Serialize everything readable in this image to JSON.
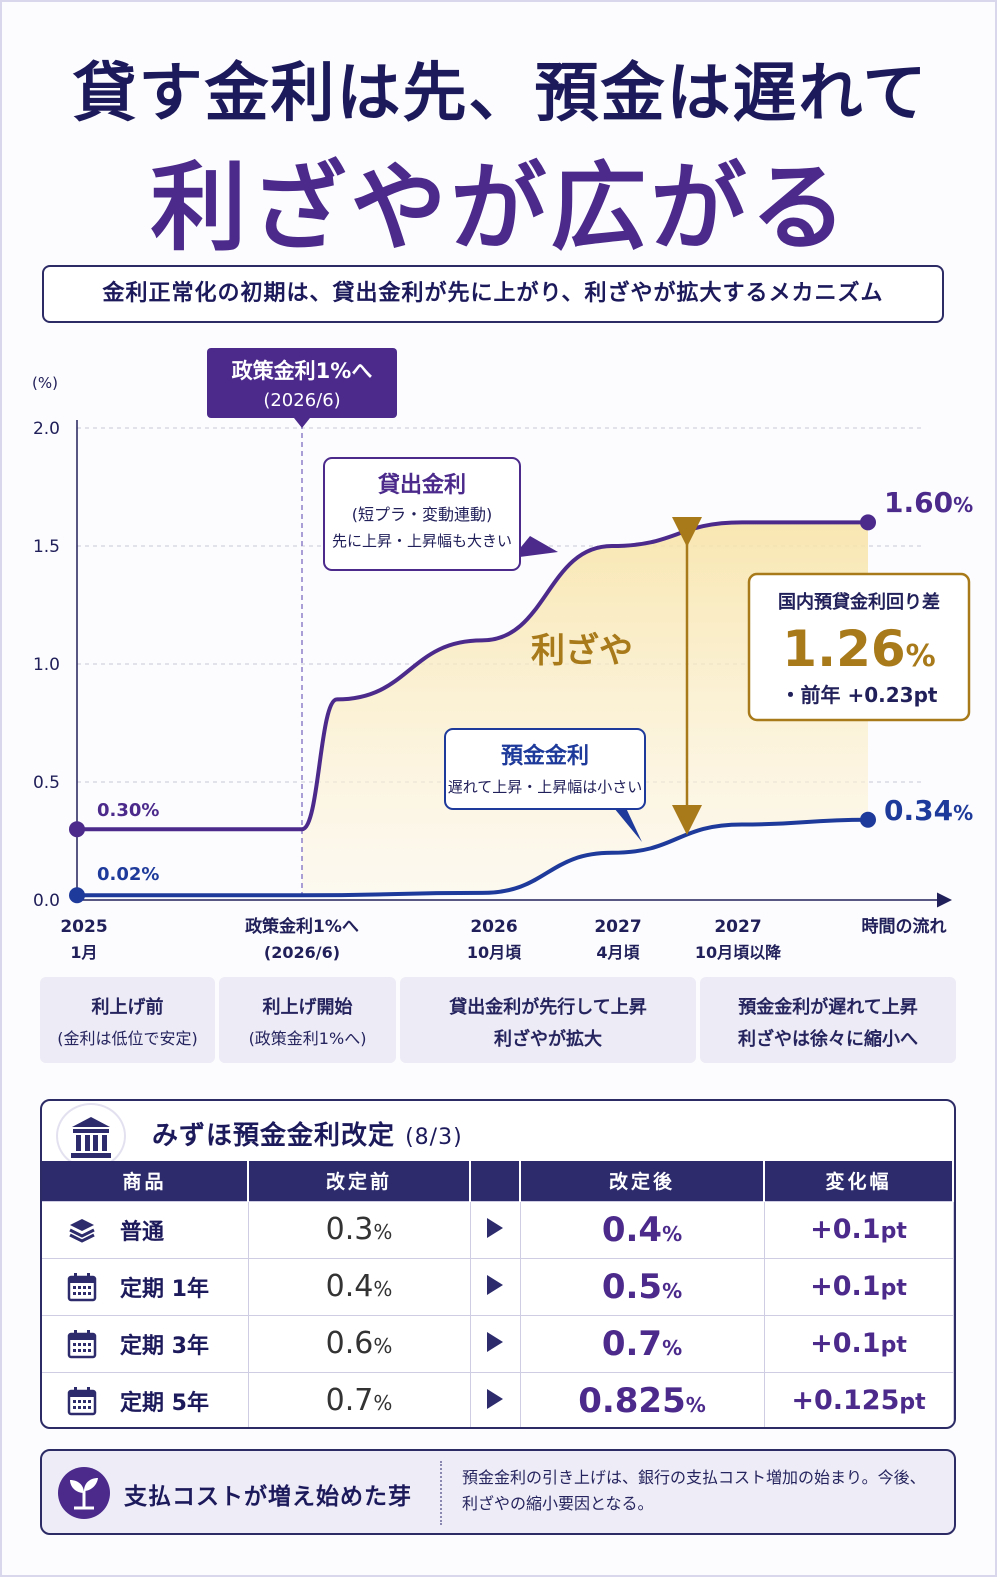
{
  "title": {
    "line1": "貸す金利は先、預金は遅れて",
    "line2": "利ざやが広がる",
    "subtitle": "金利正常化の初期は、貸出金利が先に上がり、利ざやが拡大するメカニズム"
  },
  "chart_data": {
    "type": "line",
    "ylabel": "(%)",
    "ylim": [
      0,
      2.0
    ],
    "yticks": [
      "2.0",
      "1.5",
      "1.0",
      "0.5",
      "0.0"
    ],
    "grid": true,
    "x_labels": [
      {
        "line1": "2025",
        "line2": "1月"
      },
      {
        "line1": "政策金利1%へ",
        "line2": "(2026/6)"
      },
      {
        "line1": "2026",
        "line2": "10月頃"
      },
      {
        "line1": "2027",
        "line2": "4月頃"
      },
      {
        "line1": "2027",
        "line2": "10月頃以降"
      }
    ],
    "x_axis_label": "時間の流れ",
    "policy_marker": {
      "line1": "政策金利1%へ",
      "line2": "(2026/6)"
    },
    "series": [
      {
        "name": "貸出金利",
        "color": "#4b2a8c",
        "start_label": "0.30%",
        "end_label": "1.60",
        "x": [
          "2025/1",
          "2026/6",
          "2026/8",
          "2026/10",
          "2027/4",
          "2027/10",
          "2028/3"
        ],
        "values": [
          0.3,
          0.3,
          0.85,
          1.1,
          1.5,
          1.6,
          1.6
        ]
      },
      {
        "name": "預金金利",
        "color": "#1e3a9a",
        "start_label": "0.02%",
        "end_label": "0.34",
        "x": [
          "2025/1",
          "2026/6",
          "2026/10",
          "2027/4",
          "2027/10",
          "2028/3"
        ],
        "values": [
          0.02,
          0.02,
          0.03,
          0.2,
          0.32,
          0.34
        ]
      }
    ],
    "annotations": {
      "loan_box": {
        "title": "貸出金利",
        "line2": "(短プラ・変動連動)",
        "line3": "先に上昇・上昇幅も大きい"
      },
      "deposit_box": {
        "title": "預金金利",
        "line2": "遅れて上昇・上昇幅は小さい"
      },
      "spread_label": "利ざや",
      "spread_box": {
        "title": "国内預貸金利回り差",
        "value": "1.26",
        "unit": "%",
        "change": "・前年 +0.23pt"
      }
    },
    "unit": "%"
  },
  "phases": [
    {
      "line1": "利上げ前",
      "line2": "(金利は低位で安定)"
    },
    {
      "line1": "利上げ開始",
      "line2": "(政策金利1%へ)"
    },
    {
      "line1": "貸出金利が先行して上昇",
      "line2": "利ざやが拡大"
    },
    {
      "line1": "預金金利が遅れて上昇",
      "line2": "利ざやは徐々に縮小へ"
    }
  ],
  "table": {
    "title": "みずほ預金金利改定",
    "title_sub": "(8/3)",
    "headers": [
      "商品",
      "改定前",
      "",
      "改定後",
      "変化幅"
    ],
    "rows": [
      {
        "icon": "coins-icon",
        "product": "普通",
        "before": "0.3",
        "after": "0.4",
        "change": "+0.1",
        "change_unit": "pt"
      },
      {
        "icon": "calendar-icon",
        "product": "定期 1年",
        "before": "0.4",
        "after": "0.5",
        "change": "+0.1",
        "change_unit": "pt"
      },
      {
        "icon": "calendar-icon",
        "product": "定期 3年",
        "before": "0.6",
        "after": "0.7",
        "change": "+0.1",
        "change_unit": "pt"
      },
      {
        "icon": "calendar-icon",
        "product": "定期 5年",
        "before": "0.7",
        "after": "0.825",
        "change": "+0.125",
        "change_unit": "pt"
      }
    ],
    "unit": "%"
  },
  "footer": {
    "heading": "支払コストが増え始めた芽",
    "text": "預金金利の引き上げは、銀行の支払コスト増加の始まり。今後、利ざやの縮小要因となる。"
  },
  "colors": {
    "navy": "#1d1a5c",
    "purple": "#4b2a8c",
    "blue": "#1e3a9a",
    "gold": "#a87a1a",
    "spread_fill": "#fbefc8"
  }
}
